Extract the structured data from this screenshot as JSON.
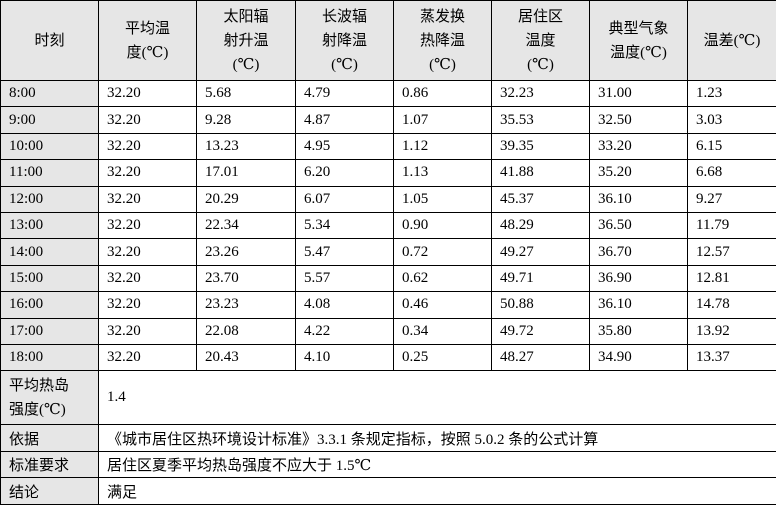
{
  "headers": [
    "时刻",
    "平均温度(℃)",
    "太阳辐射升温(℃)",
    "长波辐射降温(℃)",
    "蒸发换热降温(℃)",
    "居住区温度(℃)",
    "典型气象温度(℃)",
    "温差(℃)"
  ],
  "rows": [
    [
      "8:00",
      "32.20",
      "5.68",
      "4.79",
      "0.86",
      "32.23",
      "31.00",
      "1.23"
    ],
    [
      "9:00",
      "32.20",
      "9.28",
      "4.87",
      "1.07",
      "35.53",
      "32.50",
      "3.03"
    ],
    [
      "10:00",
      "32.20",
      "13.23",
      "4.95",
      "1.12",
      "39.35",
      "33.20",
      "6.15"
    ],
    [
      "11:00",
      "32.20",
      "17.01",
      "6.20",
      "1.13",
      "41.88",
      "35.20",
      "6.68"
    ],
    [
      "12:00",
      "32.20",
      "20.29",
      "6.07",
      "1.05",
      "45.37",
      "36.10",
      "9.27"
    ],
    [
      "13:00",
      "32.20",
      "22.34",
      "5.34",
      "0.90",
      "48.29",
      "36.50",
      "11.79"
    ],
    [
      "14:00",
      "32.20",
      "23.26",
      "5.47",
      "0.72",
      "49.27",
      "36.70",
      "12.57"
    ],
    [
      "15:00",
      "32.20",
      "23.70",
      "5.57",
      "0.62",
      "49.71",
      "36.90",
      "12.81"
    ],
    [
      "16:00",
      "32.20",
      "23.23",
      "4.08",
      "0.46",
      "50.88",
      "36.10",
      "14.78"
    ],
    [
      "17:00",
      "32.20",
      "22.08",
      "4.22",
      "0.34",
      "49.72",
      "35.80",
      "13.92"
    ],
    [
      "18:00",
      "32.20",
      "20.43",
      "4.10",
      "0.25",
      "48.27",
      "34.90",
      "13.37"
    ]
  ],
  "summary": [
    {
      "label": "平均热岛强度(℃)",
      "value": "1.4"
    },
    {
      "label": "依据",
      "value": "《城市居住区热环境设计标准》3.3.1 条规定指标，按照 5.0.2 条的公式计算"
    },
    {
      "label": "标准要求",
      "value": "居住区夏季平均热岛强度不应大于 1.5℃"
    },
    {
      "label": "结论",
      "value": "满足"
    }
  ]
}
